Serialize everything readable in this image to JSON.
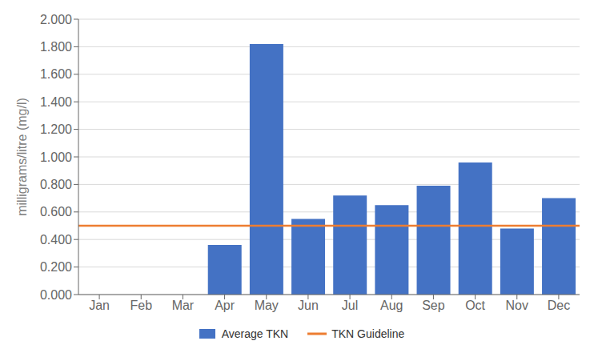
{
  "chart_data": {
    "type": "bar",
    "categories": [
      "Jan",
      "Feb",
      "Mar",
      "Apr",
      "May",
      "Jun",
      "Jul",
      "Aug",
      "Sep",
      "Oct",
      "Nov",
      "Dec"
    ],
    "series": [
      {
        "name": "Average TKN",
        "color": "#4472C4",
        "values": [
          0.0,
          0.0,
          0.0,
          0.36,
          1.82,
          0.55,
          0.72,
          0.65,
          0.79,
          0.96,
          0.48,
          0.7
        ]
      }
    ],
    "guideline": {
      "name": "TKN Guideline",
      "value": 0.5,
      "color": "#ED7D31"
    },
    "ylabel": "milligrams/litre (mg/l)",
    "ylim": [
      0.0,
      2.0
    ],
    "yticks": [
      {
        "value": 0.0,
        "label": "0.000"
      },
      {
        "value": 0.2,
        "label": "0.200"
      },
      {
        "value": 0.4,
        "label": "0.400"
      },
      {
        "value": 0.6,
        "label": "0.600"
      },
      {
        "value": 0.8,
        "label": "0.800"
      },
      {
        "value": 1.0,
        "label": "1.000"
      },
      {
        "value": 1.2,
        "label": "1.200"
      },
      {
        "value": 1.4,
        "label": "1.400"
      },
      {
        "value": 1.6,
        "label": "1.600"
      },
      {
        "value": 1.8,
        "label": "1.800"
      },
      {
        "value": 2.0,
        "label": "2.000"
      }
    ],
    "grid": true,
    "legend": "bottom"
  }
}
